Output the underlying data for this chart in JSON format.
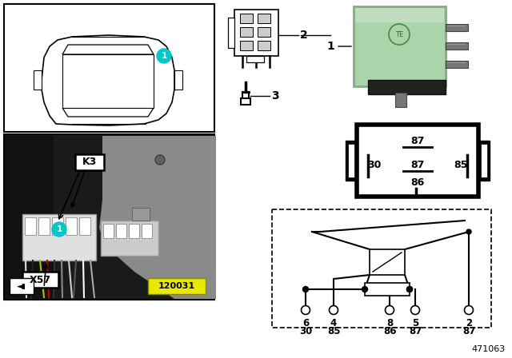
{
  "bg_color": "#ffffff",
  "relay_green_color": "#aad4aa",
  "diagram_number": "471063",
  "photo_number": "120031",
  "pin_numbers_bottom": [
    "6",
    "4",
    "8",
    "5",
    "2"
  ],
  "pin_labels_bottom": [
    "30",
    "85",
    "86",
    "87",
    "87"
  ]
}
